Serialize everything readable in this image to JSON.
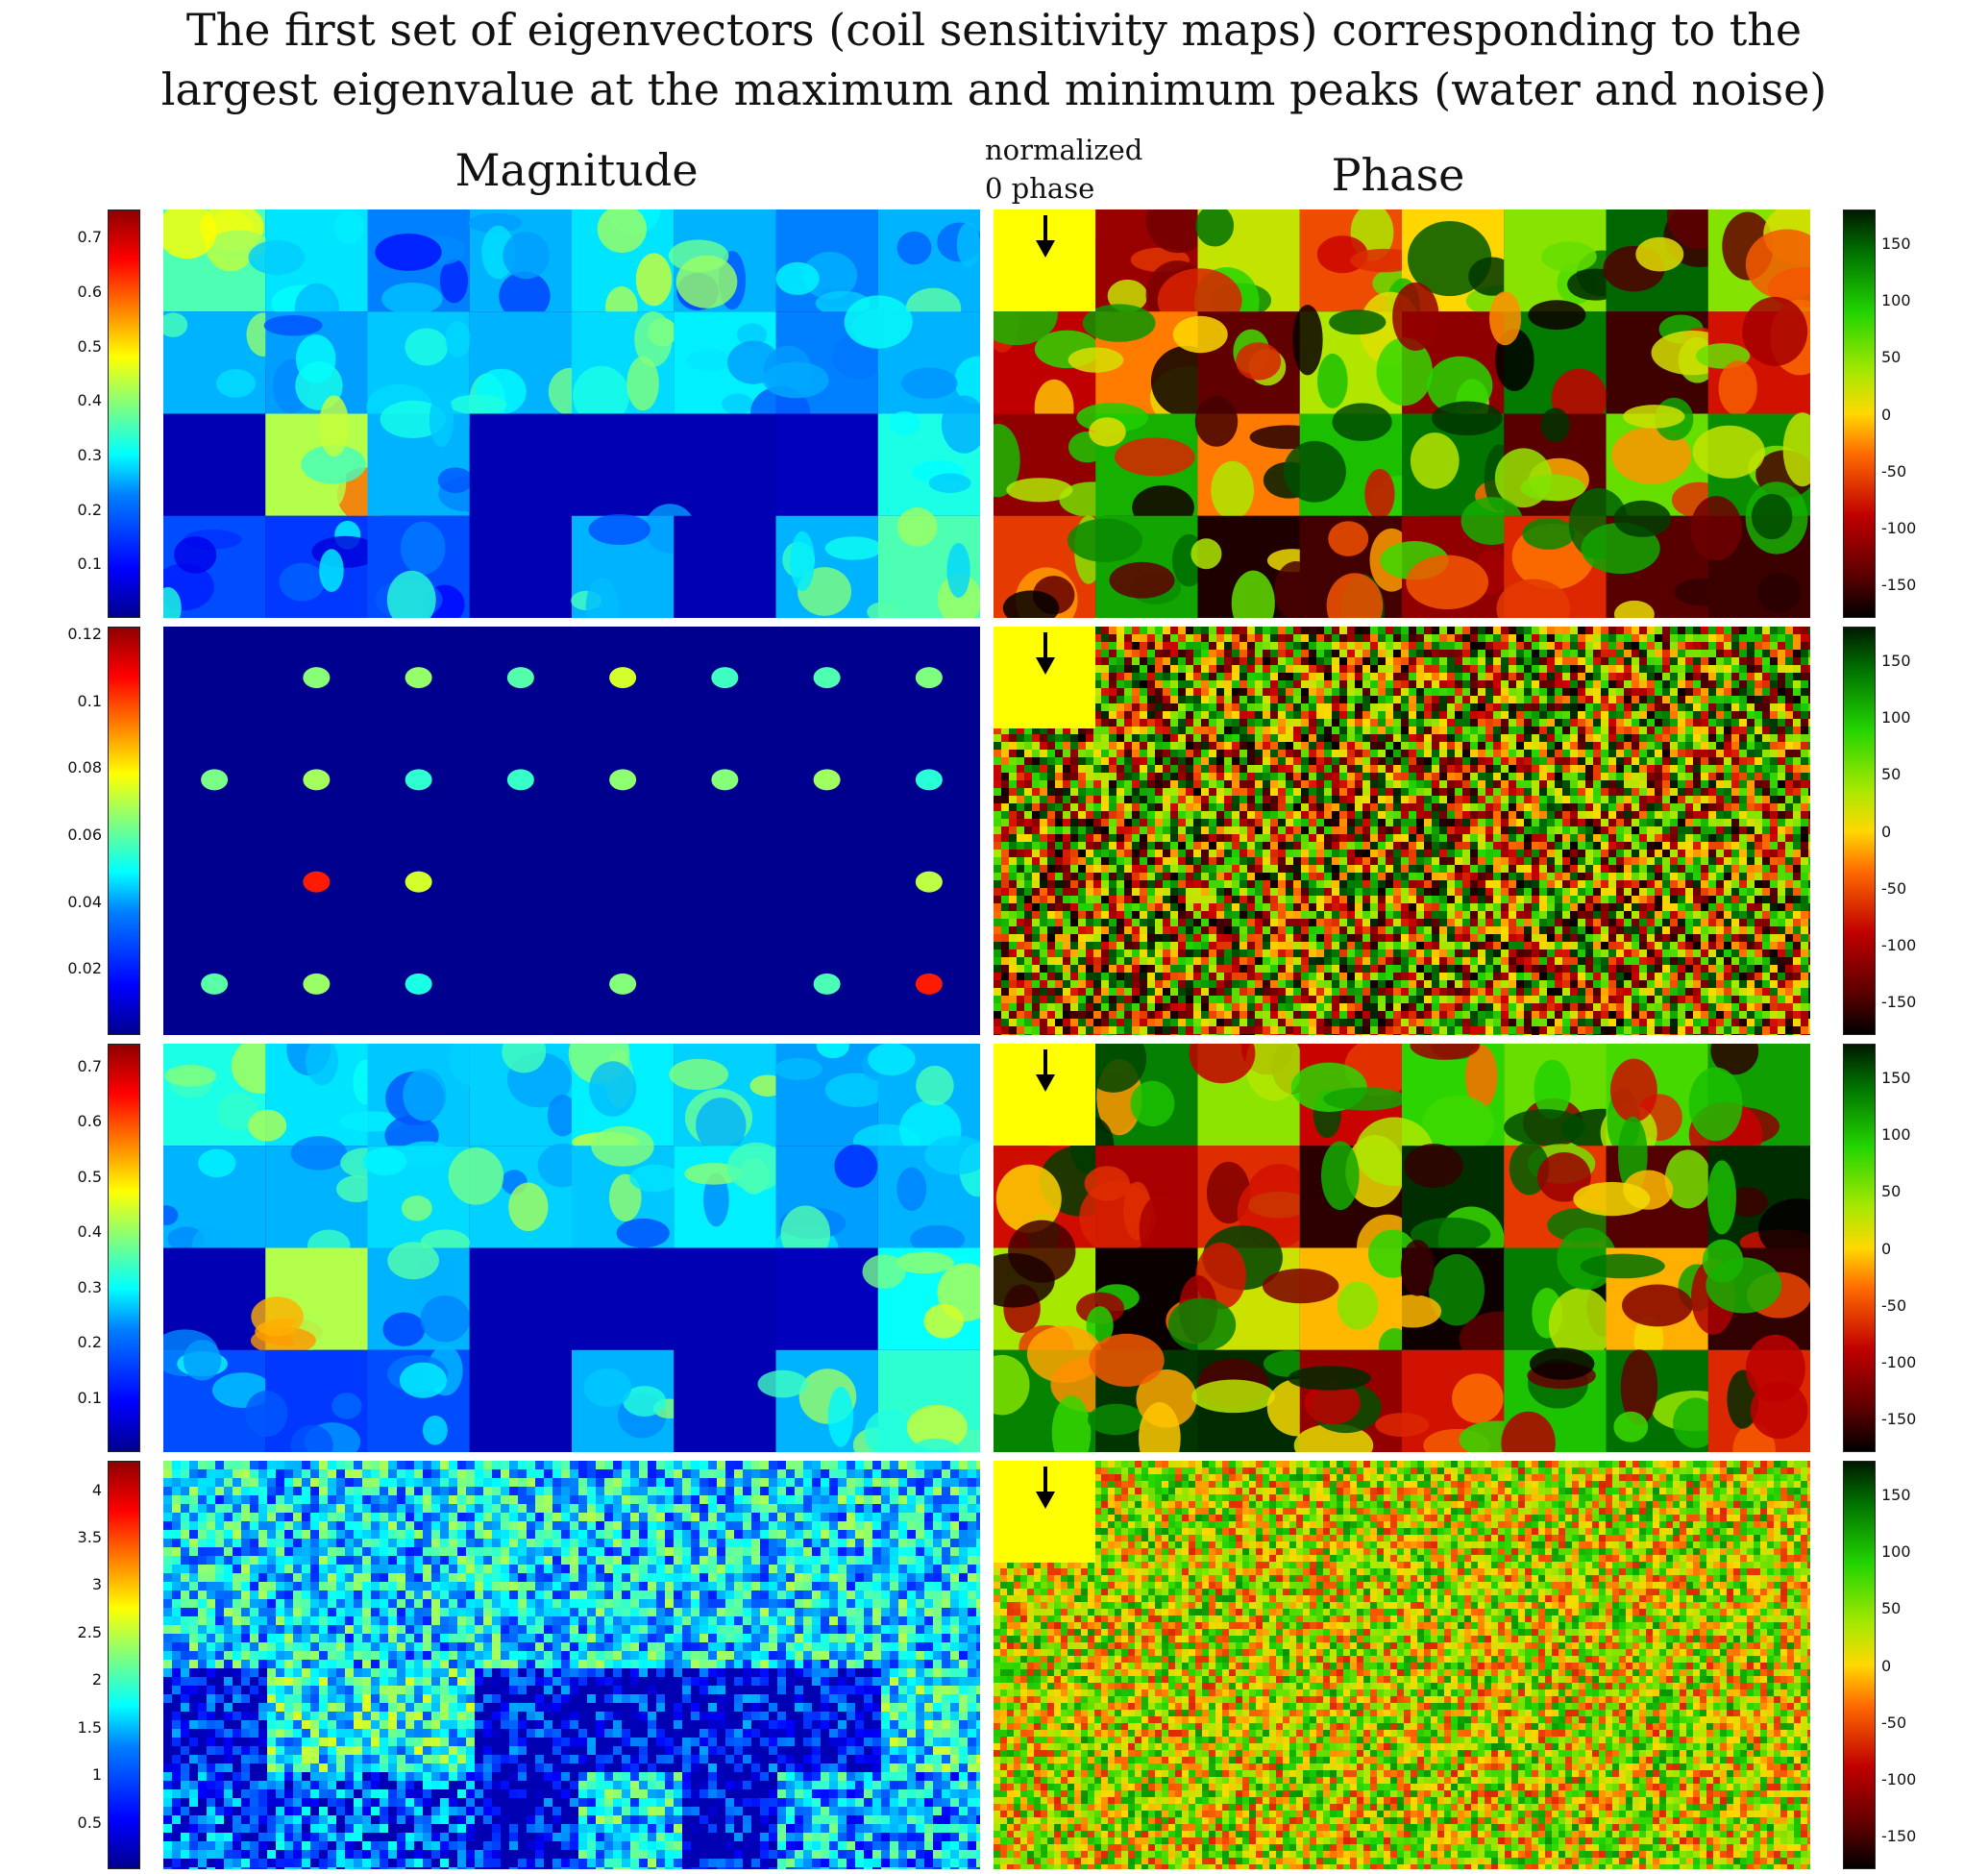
{
  "figure": {
    "title_line1": "The first set of eigenvectors (coil sensitivity maps) corresponding to the",
    "title_line2": "largest eigenvalue at the maximum and minimum peaks (water and noise)",
    "magnitude_label": "Magnitude",
    "phase_label": "Phase",
    "annotation_line1": "normalized",
    "annotation_line2": "0 phase"
  },
  "colors": {
    "magnitude_colormap": "jet",
    "phase_colormap": "black-red-yellow-green-black",
    "reference_cell": "#ffff00",
    "arrow": "#000000"
  },
  "rows": [
    {
      "magnitude_ticks": [
        "0.7",
        "0.6",
        "0.5",
        "0.4",
        "0.3",
        "0.2",
        "0.1"
      ],
      "magnitude_range": [
        0,
        0.75
      ],
      "phase_ticks": [
        "150",
        "100",
        "50",
        "0",
        "-50",
        "-100",
        "-150"
      ],
      "phase_range": [
        -180,
        180
      ]
    },
    {
      "magnitude_ticks": [
        "0.12",
        "0.1",
        "0.08",
        "0.06",
        "0.04",
        "0.02"
      ],
      "magnitude_range": [
        0,
        0.122
      ],
      "phase_ticks": [
        "150",
        "100",
        "50",
        "0",
        "-50",
        "-100",
        "-150"
      ],
      "phase_range": [
        -180,
        180
      ]
    },
    {
      "magnitude_ticks": [
        "0.7",
        "0.6",
        "0.5",
        "0.4",
        "0.3",
        "0.2",
        "0.1"
      ],
      "magnitude_range": [
        0,
        0.74
      ],
      "phase_ticks": [
        "150",
        "100",
        "50",
        "0",
        "-50",
        "-100",
        "-150"
      ],
      "phase_range": [
        -180,
        180
      ]
    },
    {
      "magnitude_ticks": [
        "4",
        "3.5",
        "3",
        "2.5",
        "2",
        "1.5",
        "1",
        "0.5"
      ],
      "magnitude_range": [
        0,
        4.3
      ],
      "phase_ticks": [
        "150",
        "100",
        "50",
        "0",
        "-50",
        "-100",
        "-150"
      ],
      "phase_range": [
        -180,
        180
      ]
    }
  ]
}
